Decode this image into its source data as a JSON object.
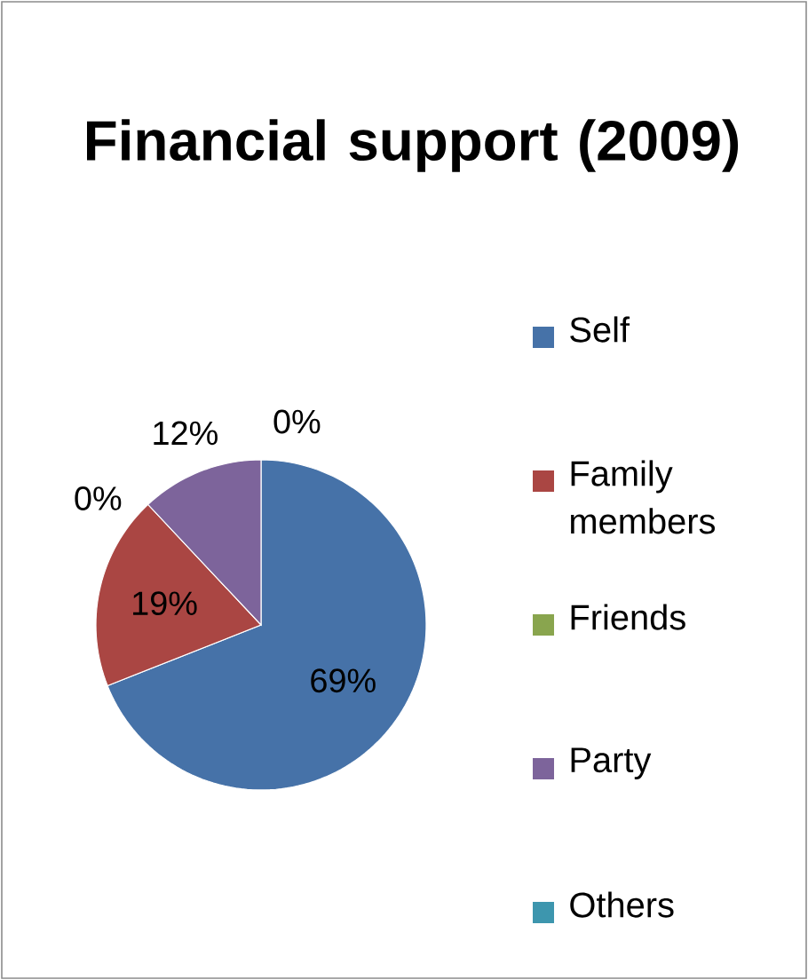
{
  "chart_data": {
    "type": "pie",
    "title": "Financial support (2009)",
    "categories": [
      "Self",
      "Family members",
      "Friends",
      "Party",
      "Others"
    ],
    "values": [
      69,
      19,
      0,
      12,
      0
    ],
    "value_labels": [
      "69%",
      "19%",
      "0%",
      "12%",
      "0%"
    ],
    "colors": [
      "#4672a8",
      "#aa4643",
      "#89a54e",
      "#7d649b",
      "#3d96ae"
    ],
    "legend": "right"
  }
}
